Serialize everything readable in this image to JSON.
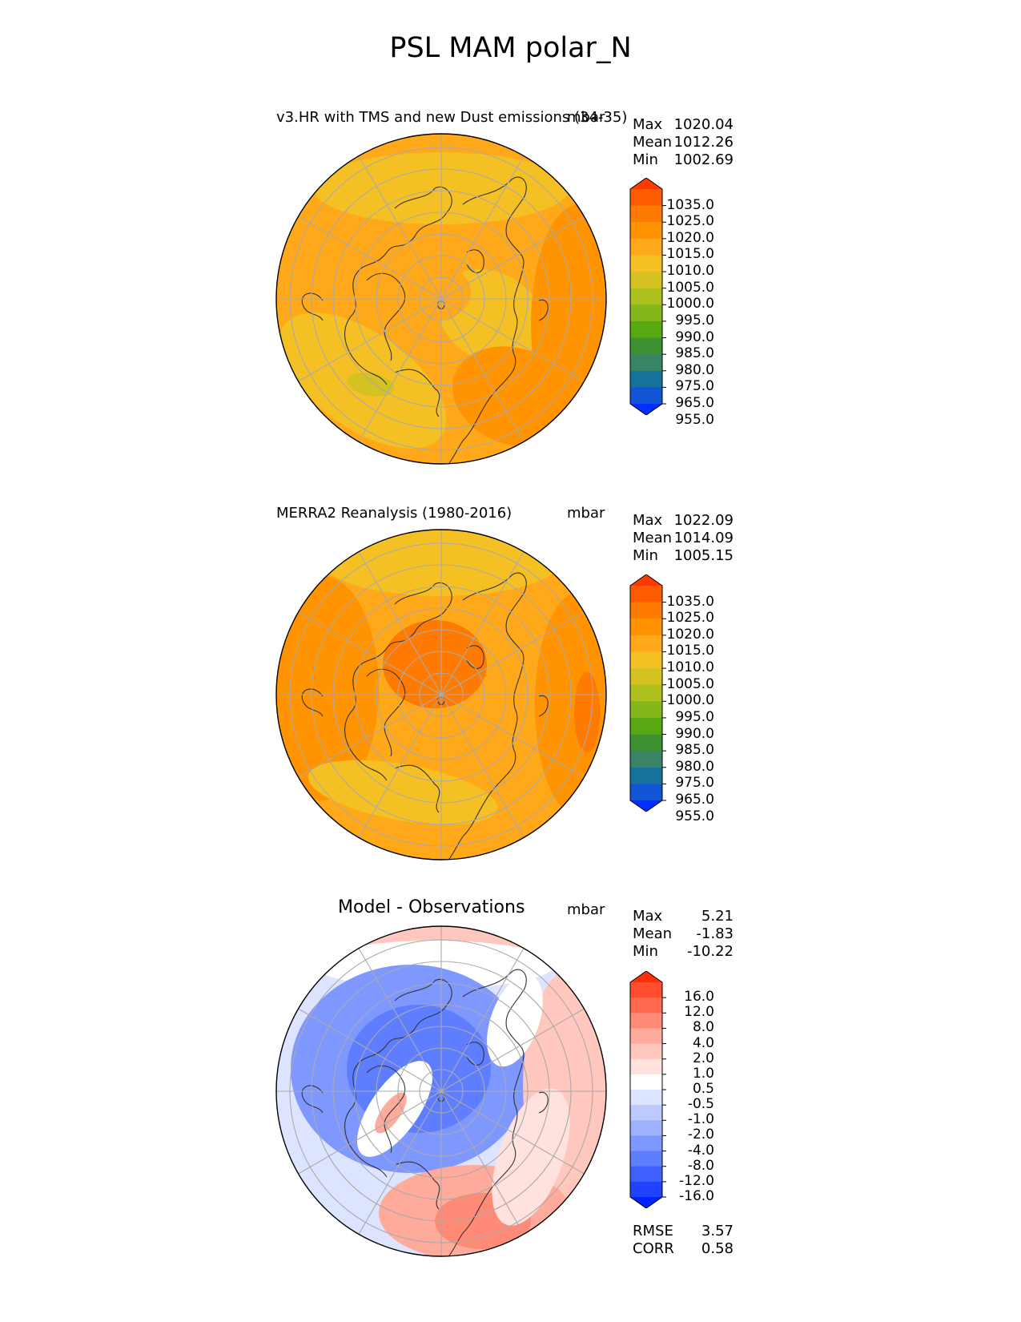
{
  "figure": {
    "title": "PSL MAM polar_N"
  },
  "panels": [
    {
      "id": "test",
      "title": "v3.HR with TMS and new Dust emissions (34-35)",
      "units": "mbar",
      "stats": {
        "max_label": "Max",
        "max": "1020.04",
        "mean_label": "Mean",
        "mean": "1012.26",
        "min_label": "Min",
        "min": "1002.69"
      }
    },
    {
      "id": "ref",
      "title": "MERRA2 Reanalysis (1980-2016)",
      "units": "mbar",
      "stats": {
        "max_label": "Max",
        "max": "1022.09",
        "mean_label": "Mean",
        "mean": "1014.09",
        "min_label": "Min",
        "min": "1005.15"
      }
    },
    {
      "id": "diff",
      "title": "Model - Observations",
      "units": "mbar",
      "stats": {
        "max_label": "Max",
        "max": "5.21",
        "mean_label": "Mean",
        "mean": "-1.83",
        "min_label": "Min",
        "min": "-10.22"
      },
      "metrics": {
        "rmse_label": "RMSE",
        "rmse": "3.57",
        "corr_label": "CORR",
        "corr": "0.58"
      }
    }
  ],
  "chart_data": [
    {
      "type": "heatmap",
      "projection": "north-polar-stereographic",
      "title": "v3.HR with TMS and new Dust emissions (34-35)",
      "units": "mbar",
      "colorbar_levels": [
        955,
        965,
        975,
        980,
        985,
        990,
        995,
        1000,
        1005,
        1010,
        1015,
        1020,
        1025,
        1035
      ],
      "colorbar_labels": [
        "1035.0",
        "1025.0",
        "1020.0",
        "1015.0",
        "1010.0",
        "1005.0",
        "1000.0",
        "995.0",
        "990.0",
        "985.0",
        "980.0",
        "975.0",
        "965.0",
        "955.0"
      ],
      "colorbar_colors": [
        "#ff3a00",
        "#ff5c00",
        "#ff7a00",
        "#ff9300",
        "#ffa81a",
        "#f5c023",
        "#d4c222",
        "#acc01e",
        "#84b71a",
        "#58a814",
        "#3d9130",
        "#3a8466",
        "#14729c",
        "#1155d5",
        "#0030ff"
      ],
      "max": 1020.04,
      "mean": 1012.26,
      "min": 1002.69
    },
    {
      "type": "heatmap",
      "projection": "north-polar-stereographic",
      "title": "MERRA2 Reanalysis (1980-2016)",
      "units": "mbar",
      "colorbar_levels": [
        955,
        965,
        975,
        980,
        985,
        990,
        995,
        1000,
        1005,
        1010,
        1015,
        1020,
        1025,
        1035
      ],
      "colorbar_labels": [
        "1035.0",
        "1025.0",
        "1020.0",
        "1015.0",
        "1010.0",
        "1005.0",
        "1000.0",
        "995.0",
        "990.0",
        "985.0",
        "980.0",
        "975.0",
        "965.0",
        "955.0"
      ],
      "colorbar_colors": [
        "#ff3a00",
        "#ff5c00",
        "#ff7a00",
        "#ff9300",
        "#ffa81a",
        "#f5c023",
        "#d4c222",
        "#acc01e",
        "#84b71a",
        "#58a814",
        "#3d9130",
        "#3a8466",
        "#14729c",
        "#1155d5",
        "#0030ff"
      ],
      "max": 1022.09,
      "mean": 1014.09,
      "min": 1005.15
    },
    {
      "type": "heatmap",
      "projection": "north-polar-stereographic",
      "title": "Model - Observations",
      "units": "mbar",
      "colorbar_levels": [
        -16,
        -12,
        -8,
        -4,
        -2,
        -1,
        -0.5,
        0.5,
        1,
        2,
        4,
        8,
        12,
        16
      ],
      "colorbar_labels": [
        "16.0",
        "12.0",
        "8.0",
        "4.0",
        "2.0",
        "1.0",
        "0.5",
        "-0.5",
        "-1.0",
        "-2.0",
        "-4.0",
        "-8.0",
        "-12.0",
        "-16.0"
      ],
      "colorbar_colors": [
        "#ff2f0a",
        "#ff4d2e",
        "#ff6a50",
        "#ff8a75",
        "#ffab9b",
        "#ffc7bd",
        "#ffe2dd",
        "#ffffff",
        "#dde4ff",
        "#bccaff",
        "#9fb2ff",
        "#7f98ff",
        "#5f7dff",
        "#3f60ff",
        "#1f42ff",
        "#0022ff"
      ],
      "max": 5.21,
      "mean": -1.83,
      "min": -10.22,
      "rmse": 3.57,
      "corr": 0.58
    }
  ]
}
